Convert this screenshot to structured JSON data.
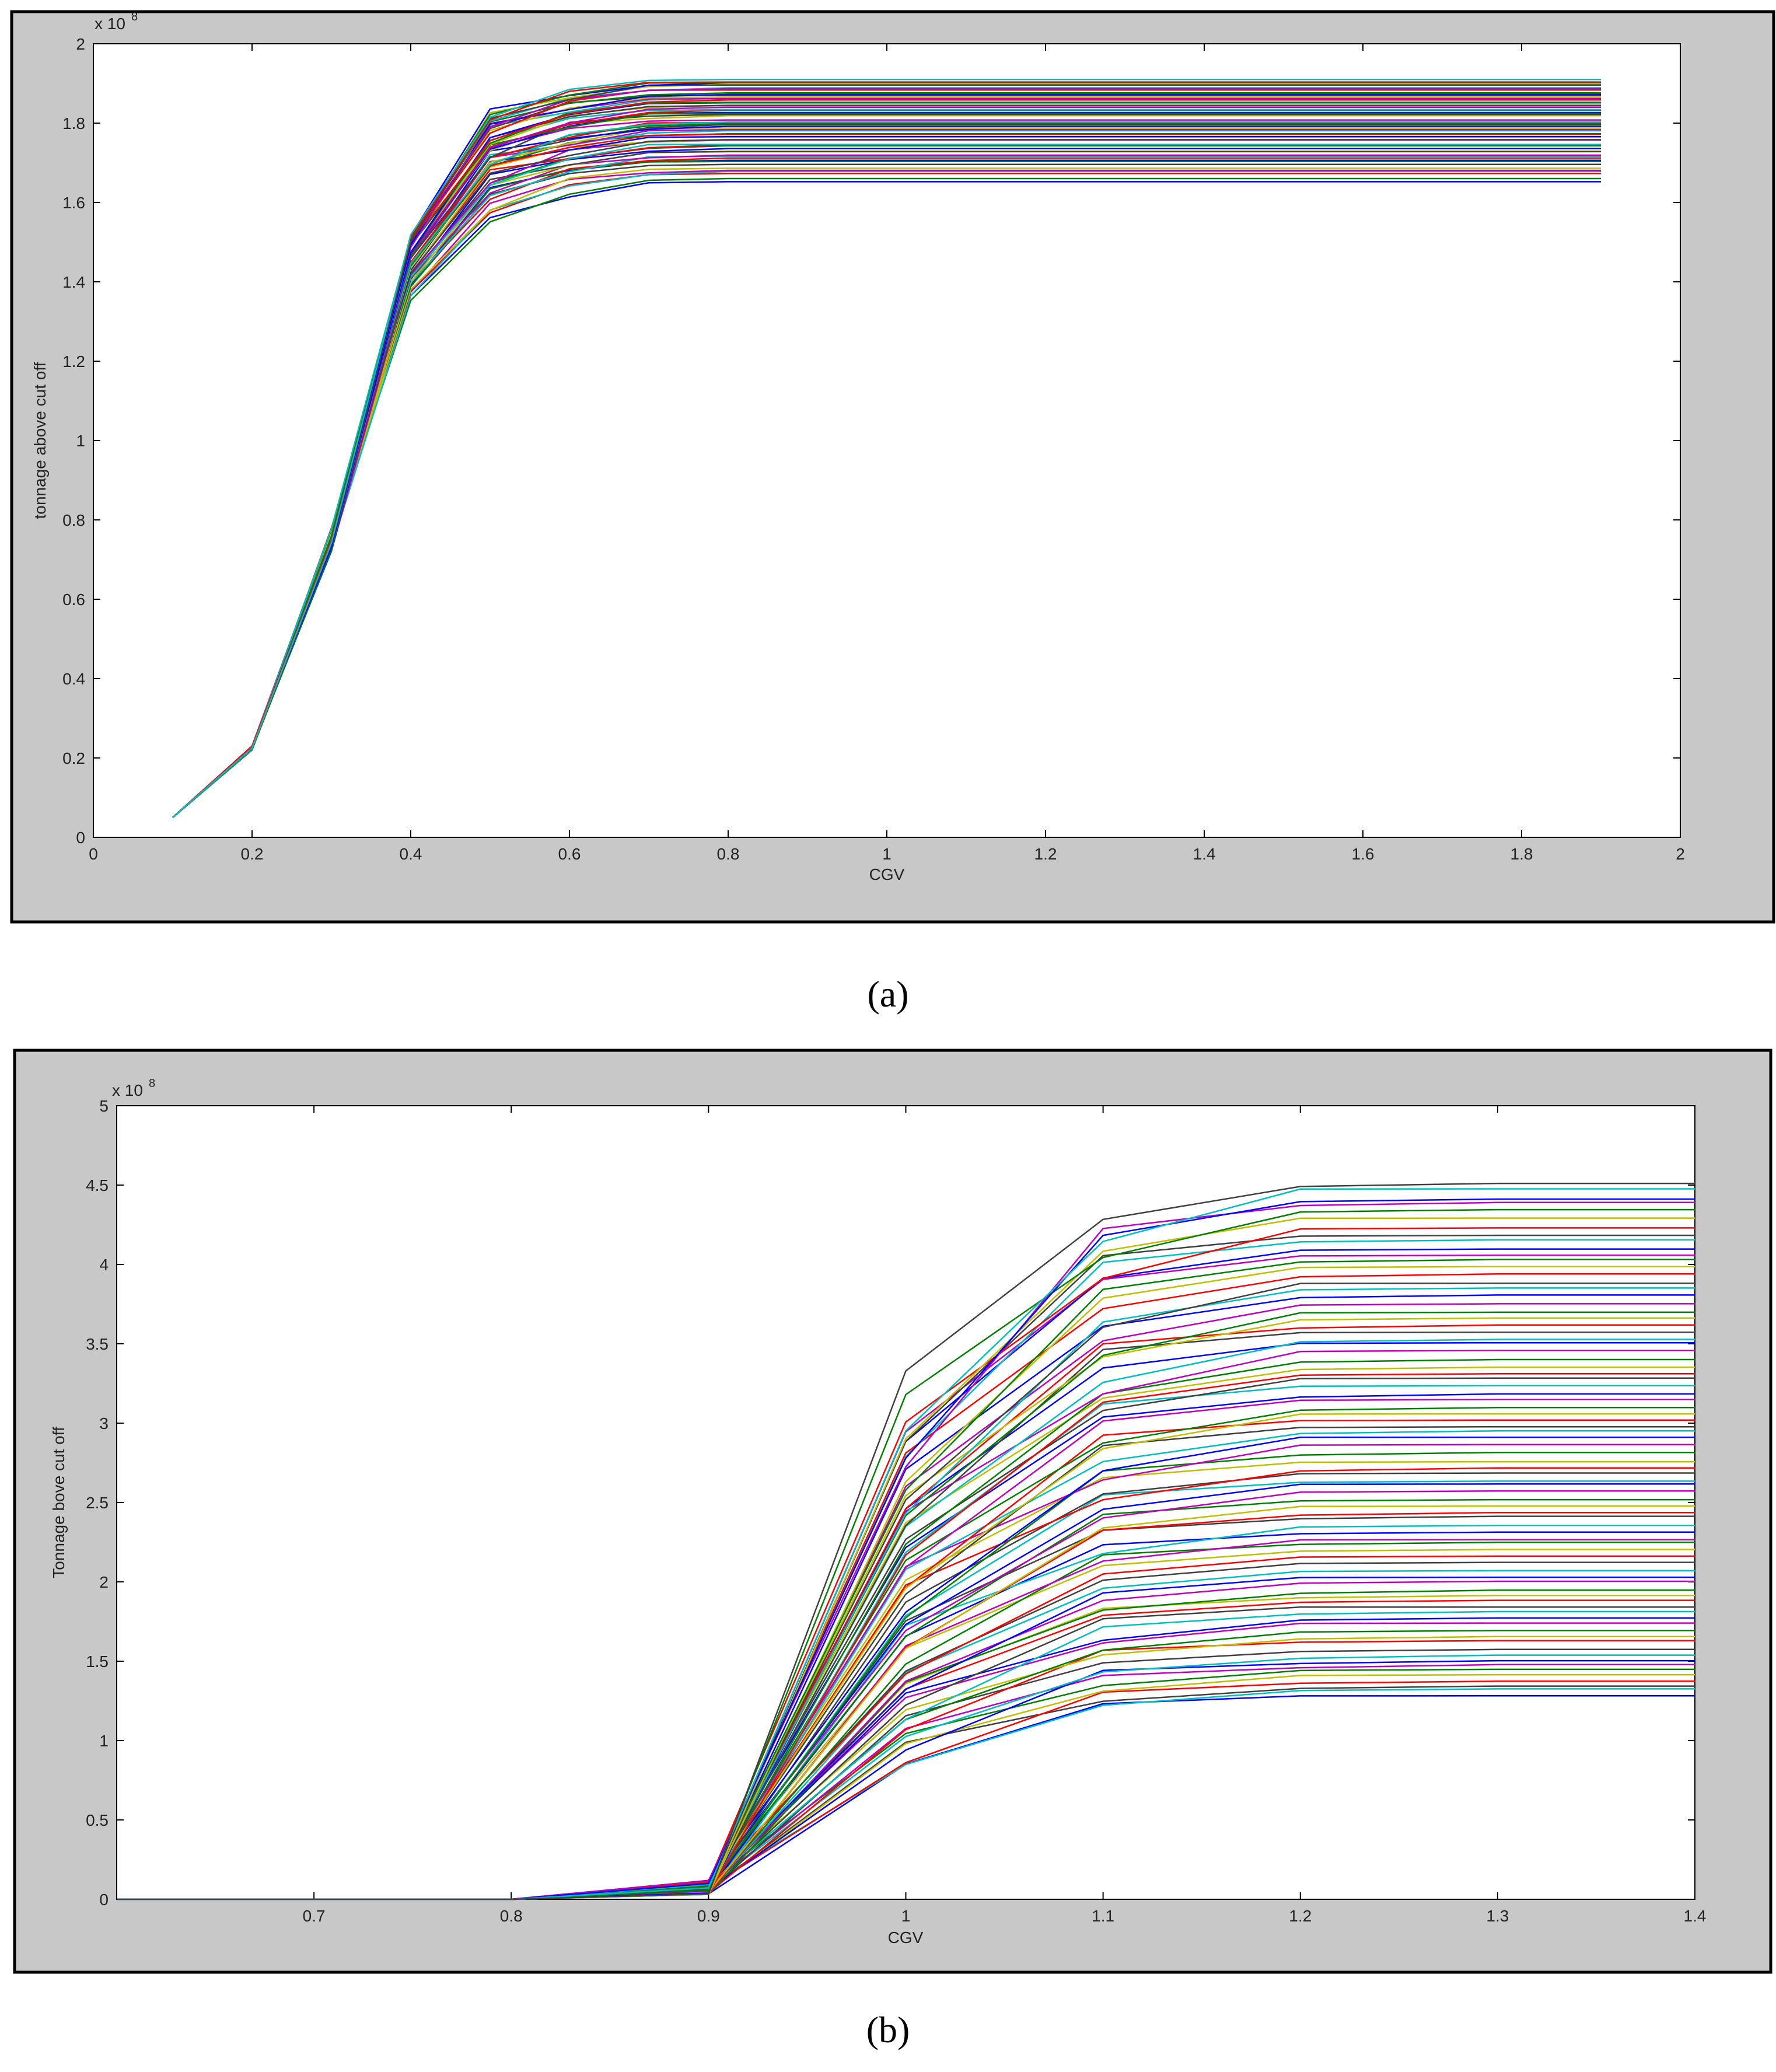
{
  "chart_data": [
    {
      "type": "line",
      "panel_caption": "(a)",
      "xlabel": "CGV",
      "ylabel": "tonnage above cut off",
      "y_exponent_label": "x 10",
      "y_exponent": "8",
      "xlim": [
        0,
        2
      ],
      "ylim": [
        0,
        2
      ],
      "x_ticks": [
        "0",
        "0.2",
        "0.4",
        "0.6",
        "0.8",
        "1",
        "1.2",
        "1.4",
        "1.6",
        "1.8",
        "2"
      ],
      "y_ticks": [
        "0",
        "0.2",
        "0.4",
        "0.6",
        "0.8",
        "1",
        "1.2",
        "1.4",
        "1.6",
        "1.8",
        "2"
      ],
      "x": [
        0.1,
        0.2,
        0.3,
        0.4,
        0.5,
        0.6,
        0.7,
        0.8,
        0.9,
        1.0,
        1.1,
        1.2,
        1.3,
        1.4,
        1.5,
        1.6,
        1.7,
        1.8,
        1.9
      ],
      "series_summary": {
        "count": 60,
        "y_at": {
          "0.1": 0.05,
          "0.2": 0.225,
          "0.3": 0.75,
          "0.4": [
            1.33,
            1.52
          ],
          "0.5": [
            1.54,
            1.8
          ]
        },
        "final_plateau_range": [
          1.61,
          1.91
        ]
      },
      "grid": false
    },
    {
      "type": "line",
      "panel_caption": "(b)",
      "xlabel": "CGV",
      "ylabel": "Tonnage bove cut off",
      "y_exponent_label": "x 10",
      "y_exponent": "8",
      "xlim": [
        0.6,
        1.4
      ],
      "ylim": [
        0,
        5
      ],
      "x_ticks": [
        "0.7",
        "0.8",
        "0.9",
        "1",
        "1.1",
        "1.2",
        "1.3",
        "1.4"
      ],
      "y_ticks": [
        "0",
        "0.5",
        "1",
        "1.5",
        "2",
        "2.5",
        "3",
        "3.5",
        "4",
        "4.5",
        "5"
      ],
      "x": [
        0.6,
        0.7,
        0.8,
        0.9,
        1.0,
        1.1,
        1.2,
        1.3,
        1.4
      ],
      "series_summary": {
        "count": 80,
        "y_at": {
          "0.6": 0.0,
          "0.8": 0.0,
          "0.9": [
            0.03,
            0.12
          ],
          "1.0": [
            0.84,
            3.13
          ],
          "1.1": [
            1.08,
            4.22
          ]
        },
        "final_plateau_range": [
          1.12,
          4.51
        ]
      },
      "grid": false
    }
  ],
  "colors": {
    "frame_gray": "#c8c8c8",
    "series_palette": [
      "#0000ff",
      "#008000",
      "#ff0000",
      "#00bfbf",
      "#bf00bf",
      "#bfbf00",
      "#404040"
    ]
  }
}
